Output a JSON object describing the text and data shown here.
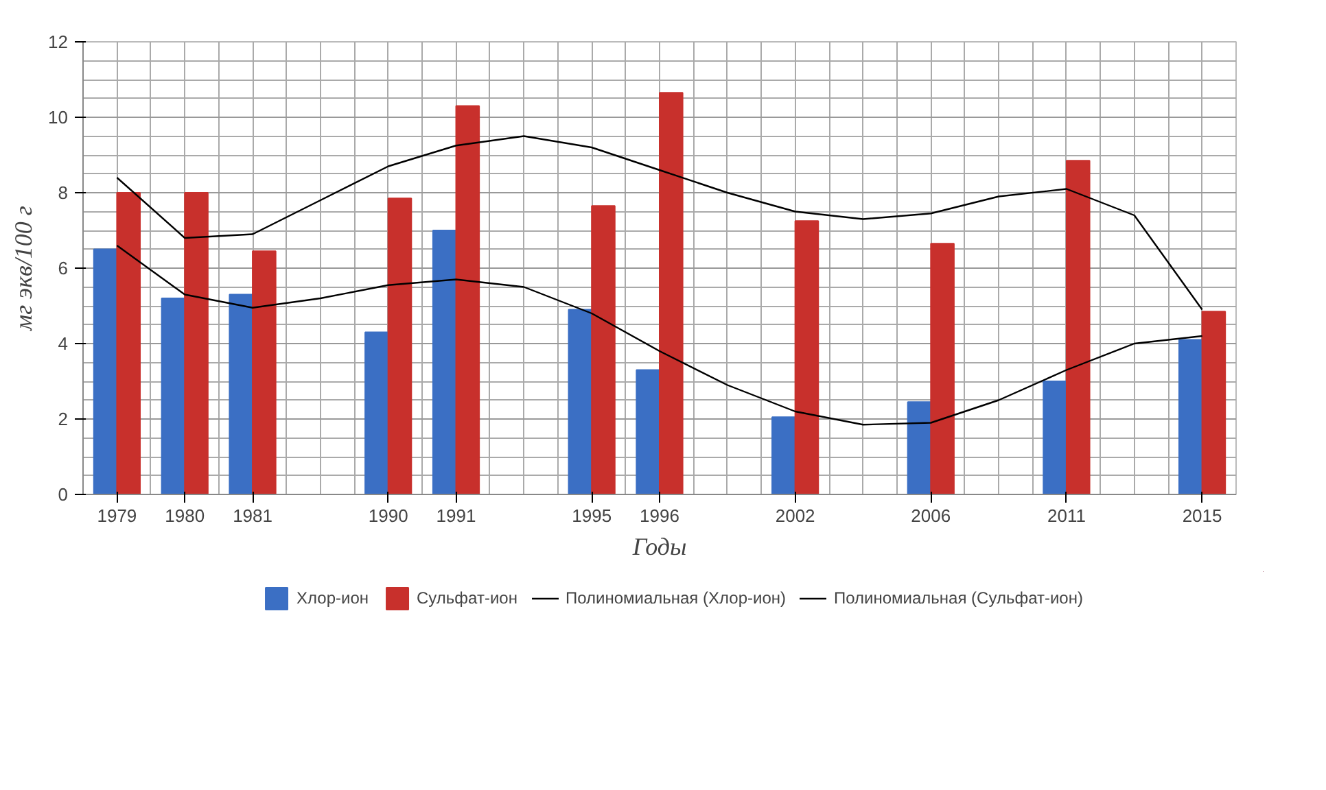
{
  "chart_data": {
    "type": "bar",
    "xlabel": "Годы",
    "ylabel": "мг экв/100 г",
    "categories": [
      "1979",
      "1980",
      "1981",
      null,
      "1990",
      "1991",
      null,
      "1995",
      "1996",
      null,
      "2002",
      null,
      "2006",
      null,
      "2011",
      null,
      "2015"
    ],
    "series": [
      {
        "name": "Хлор-ион",
        "color": "#3b6fc4",
        "values": [
          6.5,
          5.2,
          5.3,
          null,
          4.3,
          7.0,
          null,
          4.9,
          3.3,
          null,
          2.05,
          null,
          2.45,
          null,
          3.0,
          null,
          4.1
        ]
      },
      {
        "name": "Сульфат-ион",
        "color": "#c8302c",
        "values": [
          8.0,
          8.0,
          6.45,
          null,
          7.85,
          10.3,
          null,
          7.65,
          10.65,
          null,
          7.25,
          null,
          6.65,
          null,
          8.85,
          null,
          4.85
        ]
      },
      {
        "name": "Полиномиальная (Хлор-ион)",
        "type": "line",
        "color": "#000000",
        "values": [
          6.6,
          5.3,
          4.95,
          5.2,
          5.55,
          5.7,
          5.5,
          4.8,
          3.8,
          2.9,
          2.2,
          1.85,
          1.9,
          2.5,
          3.3,
          4.0,
          4.2
        ]
      },
      {
        "name": "Полиномиальная (Сульфат-ион)",
        "type": "line",
        "color": "#000000",
        "values": [
          8.4,
          6.8,
          6.9,
          7.8,
          8.7,
          9.25,
          9.5,
          9.2,
          8.6,
          8.0,
          7.5,
          7.3,
          7.45,
          7.9,
          8.1,
          7.4,
          4.9
        ]
      }
    ],
    "ylim": [
      0,
      12
    ],
    "yticks": [
      0,
      2,
      4,
      6,
      8,
      10,
      12
    ],
    "grid": true,
    "legend": "bottom",
    "marker": "none",
    "line_style": "solid"
  }
}
